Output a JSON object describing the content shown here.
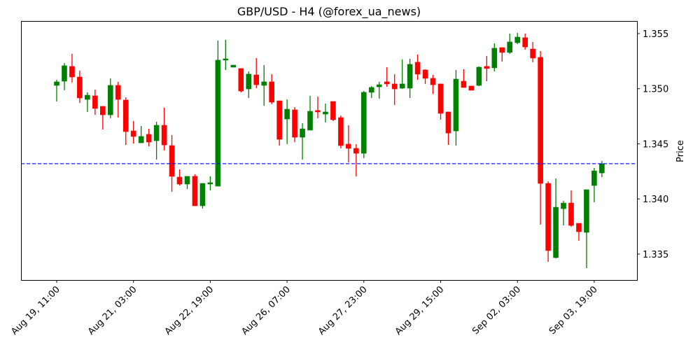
{
  "chart_data": {
    "type": "candlestick",
    "title": "GBP/USD - H4 (@forex_ua_news)",
    "xlabel": "",
    "ylabel": "Price",
    "ylim": [
      1.33265,
      1.35614
    ],
    "y_ticks": [
      1.335,
      1.34,
      1.345,
      1.35,
      1.355
    ],
    "y_tick_labels": [
      "1.335",
      "1.340",
      "1.345",
      "1.350",
      "1.355"
    ],
    "x_ticks": [
      {
        "candle": 0,
        "label": "Aug 19, 11:00"
      },
      {
        "candle": 10,
        "label": "Aug 21, 03:00"
      },
      {
        "candle": 20,
        "label": "Aug 22, 19:00"
      },
      {
        "candle": 30,
        "label": "Aug 26, 07:00"
      },
      {
        "candle": 40,
        "label": "Aug 27, 23:00"
      },
      {
        "candle": 50,
        "label": "Aug 29, 15:00"
      },
      {
        "candle": 60,
        "label": "Sep 02, 03:00"
      },
      {
        "candle": 70,
        "label": "Sep 03, 19:00"
      }
    ],
    "hline": {
      "value": 1.3432,
      "style": "dashed",
      "color": "#0000ff"
    },
    "colors": {
      "up": "#008000",
      "down": "#ff0000"
    },
    "grid": false,
    "ohlc_fields": [
      "open",
      "high",
      "low",
      "close"
    ],
    "ohlc": [
      [
        1.3503,
        1.35081,
        1.34884,
        1.35062
      ],
      [
        1.35068,
        1.35233,
        1.34986,
        1.35208
      ],
      [
        1.35202,
        1.35316,
        1.35056,
        1.35106
      ],
      [
        1.35106,
        1.35163,
        1.34871,
        1.34916
      ],
      [
        1.34903,
        1.34967,
        1.34789,
        1.34941
      ],
      [
        1.34935,
        1.34992,
        1.34763,
        1.34821
      ],
      [
        1.3484,
        1.3484,
        1.3463,
        1.34763
      ],
      [
        1.34763,
        1.35094,
        1.34732,
        1.3503
      ],
      [
        1.3503,
        1.35062,
        1.34738,
        1.34903
      ],
      [
        1.34897,
        1.34922,
        1.3449,
        1.34611
      ],
      [
        1.34617,
        1.34706,
        1.34503,
        1.34567
      ],
      [
        1.34509,
        1.34662,
        1.34509,
        1.34567
      ],
      [
        1.34586,
        1.34636,
        1.34478,
        1.34516
      ],
      [
        1.34528,
        1.347,
        1.34357,
        1.34668
      ],
      [
        1.34668,
        1.34827,
        1.3444,
        1.3449
      ],
      [
        1.34484,
        1.34579,
        1.34065,
        1.34205
      ],
      [
        1.34198,
        1.34268,
        1.34122,
        1.34135
      ],
      [
        1.34135,
        1.34205,
        1.3409,
        1.34205
      ],
      [
        1.34205,
        1.34224,
        1.33938,
        1.33938
      ],
      [
        1.33938,
        1.34141,
        1.33912,
        1.34141
      ],
      [
        1.34135,
        1.34205,
        1.34078,
        1.34148
      ],
      [
        1.34116,
        1.35437,
        1.34116,
        1.35259
      ],
      [
        1.35259,
        1.35443,
        1.3517,
        1.35271
      ],
      [
        1.35195,
        1.35214,
        1.35195,
        1.35214
      ],
      [
        1.35183,
        1.35183,
        1.34967,
        1.34979
      ],
      [
        1.34998,
        1.35157,
        1.34916,
        1.35132
      ],
      [
        1.35125,
        1.35278,
        1.35005,
        1.35036
      ],
      [
        1.3503,
        1.35214,
        1.34846,
        1.35062
      ],
      [
        1.35062,
        1.35132,
        1.34859,
        1.34878
      ],
      [
        1.3489,
        1.3489,
        1.34484,
        1.34541
      ],
      [
        1.34725,
        1.34903,
        1.34497,
        1.34814
      ],
      [
        1.34808,
        1.34833,
        1.34516,
        1.3456
      ],
      [
        1.3456,
        1.34687,
        1.34357,
        1.34636
      ],
      [
        1.34624,
        1.34935,
        1.34624,
        1.34795
      ],
      [
        1.34802,
        1.34929,
        1.34732,
        1.34789
      ],
      [
        1.3477,
        1.34865,
        1.34694,
        1.34789
      ],
      [
        1.34884,
        1.34884,
        1.34706,
        1.34719
      ],
      [
        1.34738,
        1.34757,
        1.34459,
        1.34484
      ],
      [
        1.34497,
        1.34668,
        1.34332,
        1.34459
      ],
      [
        1.34459,
        1.34497,
        1.34205,
        1.34414
      ],
      [
        1.34414,
        1.34979,
        1.3437,
        1.34967
      ],
      [
        1.34967,
        1.35024,
        1.34916,
        1.35011
      ],
      [
        1.35017,
        1.35062,
        1.34909,
        1.35036
      ],
      [
        1.35062,
        1.35195,
        1.35017,
        1.35043
      ],
      [
        1.35043,
        1.35132,
        1.34852,
        1.34998
      ],
      [
        1.35005,
        1.35265,
        1.34998,
        1.35043
      ],
      [
        1.35005,
        1.35271,
        1.34916,
        1.35221
      ],
      [
        1.3524,
        1.3531,
        1.35081,
        1.35132
      ],
      [
        1.3517,
        1.35176,
        1.35043,
        1.35094
      ],
      [
        1.35094,
        1.35125,
        1.34954,
        1.35036
      ],
      [
        1.35043,
        1.35043,
        1.34719,
        1.34776
      ],
      [
        1.34789,
        1.34789,
        1.3449,
        1.34598
      ],
      [
        1.34617,
        1.3517,
        1.34484,
        1.35087
      ],
      [
        1.35068,
        1.35176,
        1.35011,
        1.35011
      ],
      [
        1.35024,
        1.35024,
        1.34986,
        1.34986
      ],
      [
        1.3503,
        1.35202,
        1.35024,
        1.35195
      ],
      [
        1.35202,
        1.35297,
        1.35068,
        1.35183
      ],
      [
        1.35189,
        1.35411,
        1.35157,
        1.35367
      ],
      [
        1.35373,
        1.35373,
        1.35246,
        1.35329
      ],
      [
        1.35329,
        1.355,
        1.35316,
        1.35424
      ],
      [
        1.35417,
        1.35506,
        1.35405,
        1.35468
      ],
      [
        1.35462,
        1.355,
        1.35354,
        1.35379
      ],
      [
        1.3536,
        1.35424,
        1.3524,
        1.35278
      ],
      [
        1.35284,
        1.35341,
        1.33767,
        1.34141
      ],
      [
        1.34141,
        1.3416,
        1.3343,
        1.33532
      ],
      [
        1.33468,
        1.34186,
        1.33462,
        1.33925
      ],
      [
        1.33912,
        1.33983,
        1.3376,
        1.33963
      ],
      [
        1.33963,
        1.34078,
        1.33747,
        1.3376
      ],
      [
        1.33779,
        1.33779,
        1.3362,
        1.33703
      ],
      [
        1.33697,
        1.34084,
        1.33373,
        1.34084
      ],
      [
        1.34122,
        1.34281,
        1.3397,
        1.34255
      ],
      [
        1.34236,
        1.34344,
        1.34198,
        1.34319
      ]
    ]
  }
}
